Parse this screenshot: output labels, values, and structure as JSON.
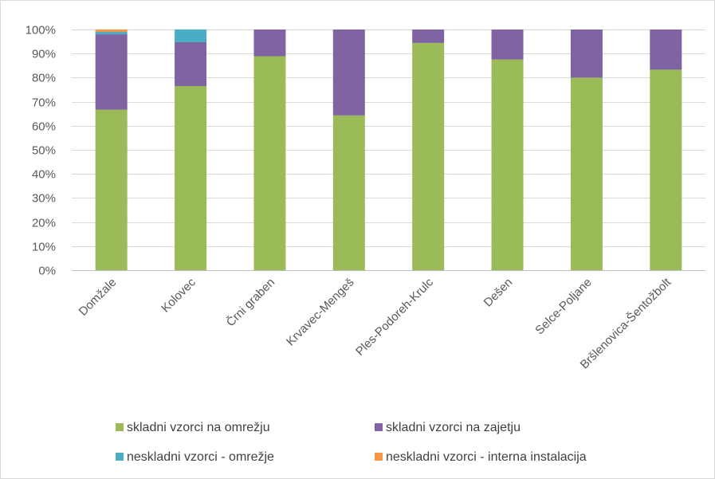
{
  "chart_data": {
    "type": "bar",
    "stacked": true,
    "categories": [
      "Domžale",
      "Kolovec",
      "Črni graben",
      "Krvavec-Mengeš",
      "Ples-Podoreh-Krulc",
      "Dešen",
      "Selce-Poljane",
      "Bršlenovica-Šentožbolt"
    ],
    "series": [
      {
        "name": "skladni vzorci na omrežju",
        "color": "#9bbb59",
        "values": [
          66.7,
          76.5,
          88.9,
          64.3,
          94.4,
          87.5,
          80.0,
          83.3
        ]
      },
      {
        "name": "skladni vzorci na zajetju",
        "color": "#8064a2",
        "values": [
          31.3,
          18.2,
          11.1,
          35.7,
          5.6,
          12.5,
          20.0,
          16.7
        ]
      },
      {
        "name": "neskladni vzorci - omrežje",
        "color": "#4bacc6",
        "values": [
          1.0,
          5.3,
          0,
          0,
          0,
          0,
          0,
          0
        ]
      },
      {
        "name": "neskladni vzorci - interna instalacija",
        "color": "#f79646",
        "values": [
          1.0,
          0,
          0,
          0,
          0,
          0,
          0,
          0
        ]
      }
    ],
    "yticks": [
      "0%",
      "10%",
      "20%",
      "30%",
      "40%",
      "50%",
      "60%",
      "70%",
      "80%",
      "90%",
      "100%"
    ],
    "ylim": [
      0,
      100
    ],
    "grid": true,
    "legend_position": "bottom",
    "title": "",
    "xlabel": "",
    "ylabel": ""
  }
}
